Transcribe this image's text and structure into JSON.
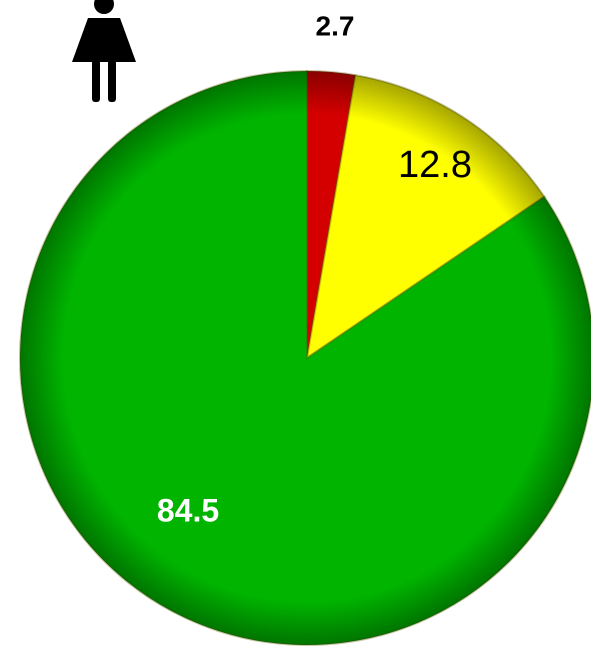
{
  "chart_data": {
    "type": "pie",
    "values": [
      2.7,
      12.8,
      84.5
    ],
    "colors": [
      "#d40000",
      "#ffff00",
      "#00b400"
    ]
  }
}
